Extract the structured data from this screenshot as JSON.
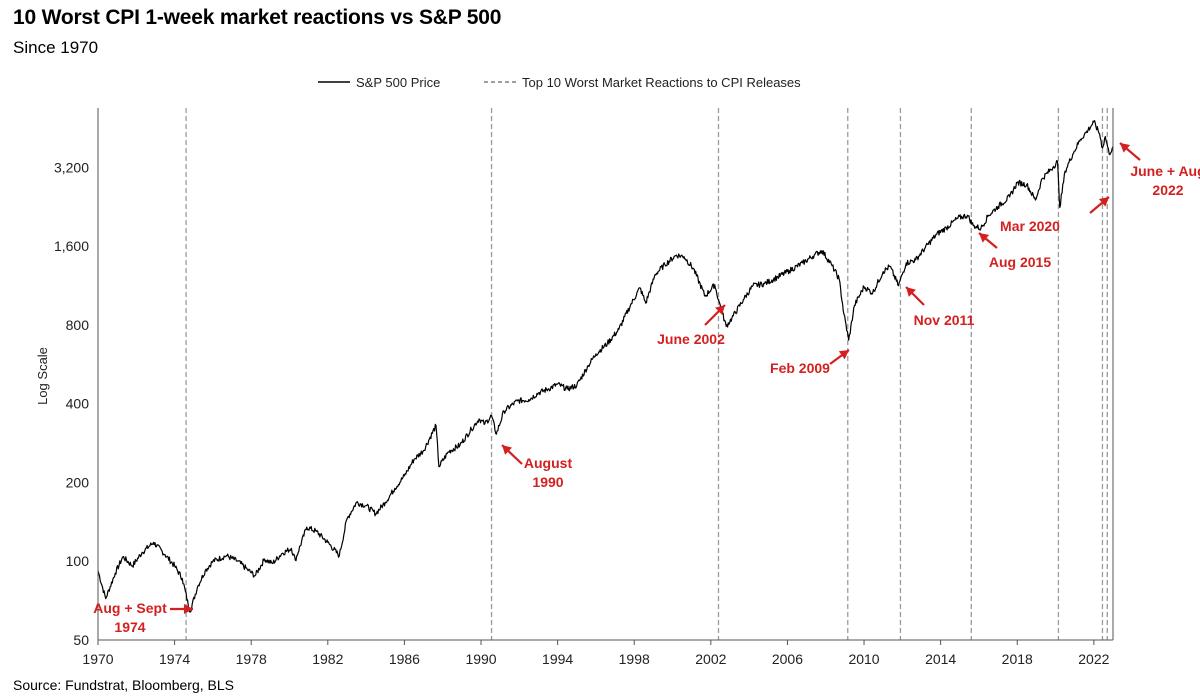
{
  "title": "10 Worst CPI 1-week market reactions vs S&P 500",
  "subtitle": "Since 1970",
  "source": "Source: Fundstrat, Bloomberg, BLS",
  "colors": {
    "line": "#000000",
    "event_line": "#9a9a9a",
    "annotation": "#d42020",
    "axis": "#555555"
  },
  "chart_data": {
    "type": "line",
    "ylabel": "Log Scale",
    "xlabel": "",
    "y_scale": "log",
    "xlim": [
      1970,
      2023
    ],
    "ylim": [
      50,
      5400
    ],
    "x_ticks": [
      1970,
      1974,
      1978,
      1982,
      1986,
      1990,
      1994,
      1998,
      2002,
      2006,
      2010,
      2014,
      2018,
      2022
    ],
    "y_ticks": [
      50,
      100,
      200,
      400,
      800,
      1600,
      3200
    ],
    "y_tick_labels": [
      "50",
      "100",
      "200",
      "400",
      "800",
      "1,600",
      "3,200"
    ],
    "legend": {
      "placement": "top-center",
      "entries": [
        {
          "label": "S&P 500 Price",
          "style": "solid"
        },
        {
          "label": "Top 10 Worst Market Reactions to CPI Releases",
          "style": "dashed"
        }
      ]
    },
    "series": [
      {
        "name": "S&P 500 Price",
        "points": [
          [
            1970.0,
            92
          ],
          [
            1970.4,
            72
          ],
          [
            1970.9,
            90
          ],
          [
            1971.3,
            104
          ],
          [
            1971.8,
            96
          ],
          [
            1972.3,
            108
          ],
          [
            1972.9,
            118
          ],
          [
            1973.5,
            106
          ],
          [
            1974.0,
            96
          ],
          [
            1974.4,
            86
          ],
          [
            1974.8,
            64
          ],
          [
            1975.2,
            80
          ],
          [
            1975.6,
            92
          ],
          [
            1976.0,
            100
          ],
          [
            1976.7,
            105
          ],
          [
            1977.3,
            100
          ],
          [
            1977.8,
            93
          ],
          [
            1978.2,
            88
          ],
          [
            1978.7,
            102
          ],
          [
            1979.1,
            98
          ],
          [
            1979.6,
            107
          ],
          [
            1980.1,
            112
          ],
          [
            1980.3,
            101
          ],
          [
            1980.9,
            135
          ],
          [
            1981.4,
            130
          ],
          [
            1982.0,
            118
          ],
          [
            1982.6,
            105
          ],
          [
            1983.0,
            145
          ],
          [
            1983.5,
            168
          ],
          [
            1984.0,
            163
          ],
          [
            1984.5,
            152
          ],
          [
            1985.0,
            168
          ],
          [
            1985.5,
            190
          ],
          [
            1986.0,
            212
          ],
          [
            1986.5,
            245
          ],
          [
            1987.0,
            265
          ],
          [
            1987.65,
            330
          ],
          [
            1987.8,
            230
          ],
          [
            1988.3,
            262
          ],
          [
            1988.9,
            278
          ],
          [
            1989.5,
            320
          ],
          [
            1989.9,
            350
          ],
          [
            1990.2,
            335
          ],
          [
            1990.55,
            360
          ],
          [
            1990.8,
            306
          ],
          [
            1991.2,
            375
          ],
          [
            1991.9,
            410
          ],
          [
            1992.5,
            415
          ],
          [
            1993.0,
            440
          ],
          [
            1993.5,
            455
          ],
          [
            1994.0,
            475
          ],
          [
            1994.5,
            455
          ],
          [
            1995.0,
            470
          ],
          [
            1995.6,
            560
          ],
          [
            1996.0,
            620
          ],
          [
            1996.6,
            680
          ],
          [
            1997.2,
            770
          ],
          [
            1997.8,
            950
          ],
          [
            1998.3,
            1110
          ],
          [
            1998.6,
            970
          ],
          [
            1999.1,
            1250
          ],
          [
            1999.6,
            1360
          ],
          [
            2000.2,
            1480
          ],
          [
            2000.6,
            1460
          ],
          [
            2001.1,
            1310
          ],
          [
            2001.7,
            1030
          ],
          [
            2002.2,
            1140
          ],
          [
            2002.4,
            1000
          ],
          [
            2002.8,
            790
          ],
          [
            2003.1,
            850
          ],
          [
            2003.7,
            1000
          ],
          [
            2004.2,
            1130
          ],
          [
            2004.8,
            1150
          ],
          [
            2005.5,
            1220
          ],
          [
            2006.1,
            1290
          ],
          [
            2006.8,
            1380
          ],
          [
            2007.4,
            1480
          ],
          [
            2007.8,
            1540
          ],
          [
            2008.3,
            1360
          ],
          [
            2008.7,
            1200
          ],
          [
            2008.95,
            880
          ],
          [
            2009.2,
            700
          ],
          [
            2009.5,
            950
          ],
          [
            2010.0,
            1120
          ],
          [
            2010.45,
            1060
          ],
          [
            2011.0,
            1280
          ],
          [
            2011.35,
            1340
          ],
          [
            2011.8,
            1130
          ],
          [
            2012.2,
            1380
          ],
          [
            2012.7,
            1420
          ],
          [
            2013.2,
            1580
          ],
          [
            2013.8,
            1780
          ],
          [
            2014.3,
            1880
          ],
          [
            2014.9,
            2050
          ],
          [
            2015.4,
            2100
          ],
          [
            2015.7,
            1920
          ],
          [
            2016.1,
            1870
          ],
          [
            2016.5,
            2100
          ],
          [
            2017.0,
            2270
          ],
          [
            2017.6,
            2470
          ],
          [
            2018.0,
            2800
          ],
          [
            2018.5,
            2750
          ],
          [
            2018.95,
            2400
          ],
          [
            2019.3,
            2900
          ],
          [
            2019.9,
            3230
          ],
          [
            2020.1,
            3380
          ],
          [
            2020.22,
            2250
          ],
          [
            2020.5,
            3100
          ],
          [
            2020.9,
            3600
          ],
          [
            2021.3,
            4100
          ],
          [
            2021.7,
            4450
          ],
          [
            2022.0,
            4780
          ],
          [
            2022.3,
            4300
          ],
          [
            2022.45,
            3800
          ],
          [
            2022.6,
            4200
          ],
          [
            2022.8,
            3600
          ],
          [
            2023.0,
            3850
          ]
        ]
      }
    ],
    "event_lines": [
      1974.6,
      1990.55,
      2002.4,
      2009.15,
      2011.9,
      2015.6,
      2020.15,
      2022.45,
      2022.7
    ],
    "annotations": [
      {
        "lines": [
          "Aug + Sept",
          "1974"
        ]
      },
      {
        "lines": [
          "August",
          "1990"
        ]
      },
      {
        "lines": [
          "June 2002"
        ]
      },
      {
        "lines": [
          "Feb 2009"
        ]
      },
      {
        "lines": [
          "Nov 2011"
        ]
      },
      {
        "lines": [
          "Aug 2015"
        ]
      },
      {
        "lines": [
          "Mar 2020"
        ]
      },
      {
        "lines": [
          "June + Aug",
          "2022"
        ]
      }
    ]
  }
}
